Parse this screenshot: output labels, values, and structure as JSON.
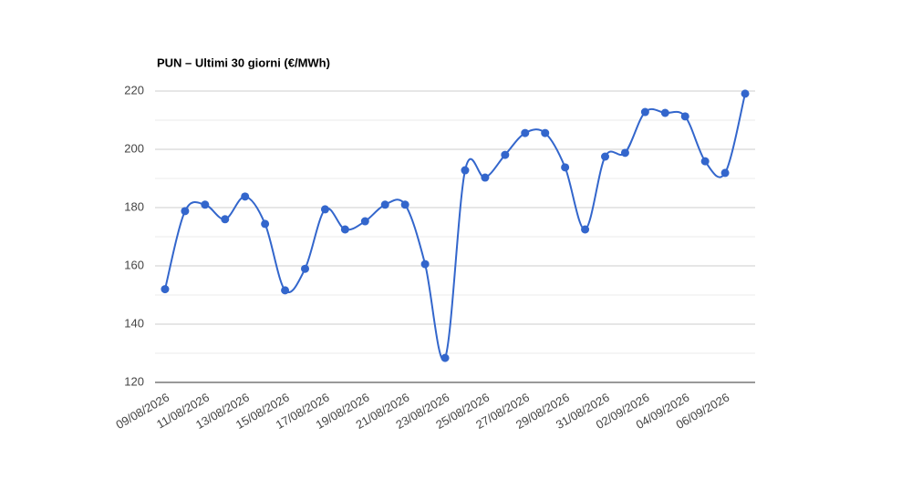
{
  "chart_data": {
    "type": "line",
    "title": "PUN – Ultimi 30 giorni (€/MWh)",
    "categories": [
      "09/08/2026",
      null,
      "11/08/2026",
      null,
      "13/08/2026",
      null,
      "15/08/2026",
      null,
      "17/08/2026",
      null,
      "19/08/2026",
      null,
      "21/08/2026",
      null,
      "23/08/2026",
      null,
      "25/08/2026",
      null,
      "27/08/2026",
      null,
      "29/08/2026",
      null,
      "31/08/2026",
      null,
      "02/09/2026",
      null,
      "04/09/2026",
      null,
      "06/09/2026",
      null
    ],
    "values": [
      152,
      178.8,
      181,
      176,
      183.8,
      174.4,
      151.6,
      159,
      179.4,
      172.5,
      175.3,
      181,
      181,
      160.6,
      128.4,
      192.8,
      190.3,
      198.1,
      205.6,
      205.6,
      193.8,
      172.5,
      197.5,
      198.8,
      212.8,
      212.5,
      211.3,
      195.9,
      191.9,
      219.1
    ],
    "color": "#3366cc",
    "ylim": [
      120,
      220
    ],
    "yticks": [
      120,
      140,
      160,
      180,
      200,
      220
    ],
    "grid": true
  }
}
